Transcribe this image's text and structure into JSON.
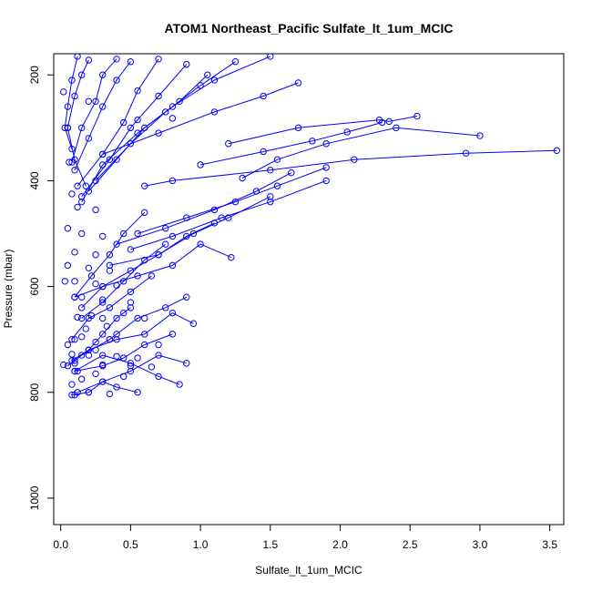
{
  "chart_data": {
    "type": "line",
    "title": "ATOM1 Northeast_Pacific Sulfate_lt_1um_MCIC",
    "xlabel": "Sulfate_lt_1um_MCIC",
    "ylabel": "Pressure (mbar)",
    "xlim": [
      -0.05,
      3.6
    ],
    "ylim": [
      1050,
      160
    ],
    "y_reversed": true,
    "x_ticks": [
      "0.0",
      "0.5",
      "1.0",
      "1.5",
      "2.0",
      "2.5",
      "3.0",
      "3.5"
    ],
    "x_tick_values": [
      0,
      0.5,
      1.0,
      1.5,
      2.0,
      2.5,
      3.0,
      3.5
    ],
    "y_ticks": [
      "200",
      "400",
      "600",
      "800",
      "1000"
    ],
    "y_tick_values": [
      200,
      400,
      600,
      800,
      1000
    ],
    "grid": false,
    "legend": "none",
    "marker": "open-circle",
    "color": "#0000ff",
    "series": [
      {
        "x": [
          3.55,
          2.9,
          2.1,
          1.5,
          0.8,
          0.6
        ],
        "y": [
          343,
          348,
          360,
          380,
          400,
          410
        ]
      },
      {
        "x": [
          3.0,
          2.4,
          1.9,
          1.55,
          1.3
        ],
        "y": [
          315,
          300,
          330,
          360,
          395
        ]
      },
      {
        "x": [
          2.55,
          2.35,
          2.28,
          1.7,
          1.2
        ],
        "y": [
          278,
          288,
          285,
          300,
          330
        ]
      },
      {
        "x": [
          2.3,
          2.05,
          1.8,
          1.45,
          1.0
        ],
        "y": [
          290,
          308,
          325,
          345,
          370
        ]
      },
      {
        "x": [
          1.9,
          1.55,
          1.25,
          0.9,
          0.55
        ],
        "y": [
          375,
          410,
          440,
          470,
          500
        ]
      },
      {
        "x": [
          1.65,
          1.4,
          1.1,
          0.75,
          0.4
        ],
        "y": [
          385,
          420,
          455,
          490,
          520
        ]
      },
      {
        "x": [
          1.5,
          1.2,
          0.95,
          0.7,
          0.35
        ],
        "y": [
          430,
          470,
          500,
          540,
          560
        ]
      },
      {
        "x": [
          1.9,
          1.5,
          1.15,
          0.8,
          0.5
        ],
        "y": [
          400,
          440,
          470,
          505,
          530
        ]
      },
      {
        "x": [
          1.7,
          1.45,
          1.1,
          0.7,
          0.3
        ],
        "y": [
          215,
          240,
          270,
          310,
          350
        ]
      },
      {
        "x": [
          1.5,
          1.1,
          0.8,
          0.55,
          0.3,
          0.15
        ],
        "y": [
          165,
          210,
          260,
          310,
          370,
          440
        ]
      },
      {
        "x": [
          1.25,
          1.0,
          0.75,
          0.5,
          0.25
        ],
        "y": [
          175,
          220,
          270,
          330,
          400
        ]
      },
      {
        "x": [
          1.05,
          0.85,
          0.6,
          0.4,
          0.2
        ],
        "y": [
          200,
          250,
          300,
          360,
          420
        ]
      },
      {
        "x": [
          0.9,
          0.7,
          0.5,
          0.35,
          0.15
        ],
        "y": [
          180,
          240,
          300,
          360,
          430
        ]
      },
      {
        "x": [
          0.7,
          0.55,
          0.45,
          0.3,
          0.12
        ],
        "y": [
          170,
          230,
          290,
          350,
          410
        ]
      },
      {
        "x": [
          0.5,
          0.4,
          0.3,
          0.2,
          0.1
        ],
        "y": [
          175,
          210,
          260,
          320,
          380
        ]
      },
      {
        "x": [
          0.4,
          0.3,
          0.25,
          0.15,
          0.08
        ],
        "y": [
          170,
          200,
          250,
          300,
          365
        ]
      },
      {
        "x": [
          0.2,
          0.15,
          0.1,
          0.05,
          0.1,
          0.18
        ],
        "y": [
          172,
          200,
          240,
          300,
          360,
          410
        ]
      },
      {
        "x": [
          0.12,
          0.08,
          0.05,
          0.03,
          0.08
        ],
        "y": [
          165,
          210,
          260,
          300,
          340
        ]
      },
      {
        "x": [
          1.22,
          1.0,
          0.8,
          0.55,
          0.3,
          0.1
        ],
        "y": [
          545,
          520,
          560,
          580,
          600,
          620
        ]
      },
      {
        "x": [
          1.1,
          0.9,
          0.7,
          0.5,
          0.3,
          0.15
        ],
        "y": [
          480,
          505,
          540,
          570,
          600,
          640
        ]
      },
      {
        "x": [
          0.95,
          0.8,
          0.6,
          0.4,
          0.2,
          0.08
        ],
        "y": [
          670,
          650,
          690,
          700,
          720,
          740
        ]
      },
      {
        "x": [
          0.9,
          0.7,
          0.5,
          0.3,
          0.12
        ],
        "y": [
          745,
          730,
          760,
          780,
          800
        ]
      },
      {
        "x": [
          0.9,
          0.75,
          0.55,
          0.35,
          0.15
        ],
        "y": [
          620,
          640,
          660,
          700,
          730
        ]
      },
      {
        "x": [
          0.85,
          0.7,
          0.5,
          0.3,
          0.1
        ],
        "y": [
          785,
          770,
          745,
          730,
          760
        ]
      },
      {
        "x": [
          0.8,
          0.6,
          0.45,
          0.3,
          0.1
        ],
        "y": [
          690,
          710,
          735,
          750,
          760
        ]
      },
      {
        "x": [
          0.65,
          0.5,
          0.35,
          0.2,
          0.08
        ],
        "y": [
          580,
          610,
          640,
          660,
          700
        ]
      },
      {
        "x": [
          0.55,
          0.4,
          0.3,
          0.2,
          0.08
        ],
        "y": [
          800,
          790,
          780,
          800,
          805
        ]
      },
      {
        "x": [
          0.75,
          0.6,
          0.45,
          0.3,
          0.15
        ],
        "y": [
          520,
          550,
          590,
          630,
          660
        ]
      },
      {
        "x": [
          0.6,
          0.45,
          0.35,
          0.22,
          0.1
        ],
        "y": [
          460,
          500,
          540,
          580,
          620
        ]
      },
      {
        "x": [
          0.5,
          0.4,
          0.3,
          0.2,
          0.1,
          0.05
        ],
        "y": [
          640,
          660,
          690,
          720,
          740,
          750
        ]
      }
    ],
    "points": [
      {
        "x": 0.45,
        "y": 650
      },
      {
        "x": 0.22,
        "y": 655
      },
      {
        "x": 0.12,
        "y": 658
      },
      {
        "x": 0.3,
        "y": 660
      },
      {
        "x": 0.15,
        "y": 695
      },
      {
        "x": 0.35,
        "y": 700
      },
      {
        "x": 0.1,
        "y": 700
      },
      {
        "x": 0.25,
        "y": 705
      },
      {
        "x": 0.08,
        "y": 728
      },
      {
        "x": 0.2,
        "y": 730
      },
      {
        "x": 0.4,
        "y": 732
      },
      {
        "x": 0.55,
        "y": 735
      },
      {
        "x": 0.1,
        "y": 745
      },
      {
        "x": 0.3,
        "y": 748
      },
      {
        "x": 0.5,
        "y": 750
      },
      {
        "x": 0.65,
        "y": 752
      },
      {
        "x": 0.12,
        "y": 760
      },
      {
        "x": 0.25,
        "y": 765
      },
      {
        "x": 0.45,
        "y": 770
      },
      {
        "x": 0.08,
        "y": 785
      },
      {
        "x": 0.2,
        "y": 800
      },
      {
        "x": 0.35,
        "y": 803
      },
      {
        "x": 0.1,
        "y": 805
      },
      {
        "x": 0.15,
        "y": 620
      },
      {
        "x": 0.3,
        "y": 625
      },
      {
        "x": 0.5,
        "y": 630
      },
      {
        "x": 0.1,
        "y": 590
      },
      {
        "x": 0.25,
        "y": 595
      },
      {
        "x": 0.4,
        "y": 598
      },
      {
        "x": 0.05,
        "y": 560
      },
      {
        "x": 0.2,
        "y": 565
      },
      {
        "x": 0.35,
        "y": 570
      },
      {
        "x": 0.1,
        "y": 535
      },
      {
        "x": 0.25,
        "y": 540
      },
      {
        "x": 0.05,
        "y": 490
      },
      {
        "x": 0.15,
        "y": 500
      },
      {
        "x": 0.3,
        "y": 505
      },
      {
        "x": 0.12,
        "y": 450
      },
      {
        "x": 0.25,
        "y": 455
      },
      {
        "x": 0.08,
        "y": 425
      },
      {
        "x": 0.02,
        "y": 232
      },
      {
        "x": 0.05,
        "y": 300
      },
      {
        "x": 0.06,
        "y": 365
      },
      {
        "x": 0.2,
        "y": 250
      },
      {
        "x": 0.55,
        "y": 285
      },
      {
        "x": 0.8,
        "y": 282
      },
      {
        "x": 0.02,
        "y": 748
      },
      {
        "x": 0.03,
        "y": 590
      },
      {
        "x": 0.6,
        "y": 660
      },
      {
        "x": 0.7,
        "y": 710
      },
      {
        "x": 0.4,
        "y": 690
      },
      {
        "x": 0.25,
        "y": 720
      },
      {
        "x": 0.15,
        "y": 775
      },
      {
        "x": 0.05,
        "y": 710
      },
      {
        "x": 0.18,
        "y": 680
      },
      {
        "x": 0.33,
        "y": 675
      }
    ]
  }
}
